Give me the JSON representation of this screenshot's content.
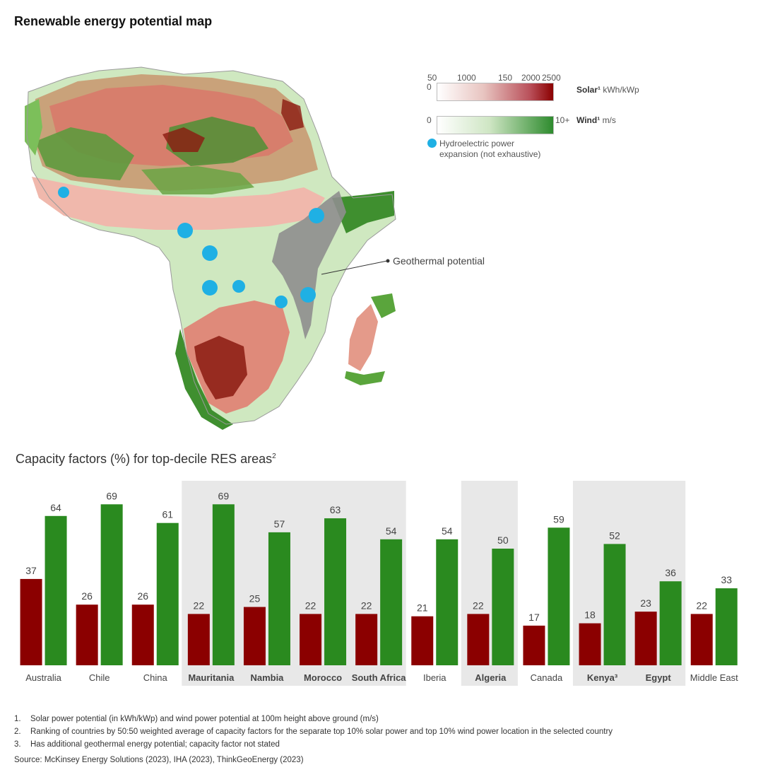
{
  "map": {
    "title": "Renewable energy potential map",
    "legend": {
      "solar": {
        "ticks": [
          "50",
          "1000",
          "150",
          "2000",
          "2500"
        ],
        "zero": "0",
        "label_bold": "Solar¹",
        "label_unit": "kWh/kWp",
        "color_start": "#ffffff",
        "color_end": "#8b0000"
      },
      "wind": {
        "zero": "0",
        "max": "10+",
        "label_bold": "Wind¹",
        "label_unit": "m/s",
        "color_start": "#ffffff",
        "color_end": "#2e8b2e"
      },
      "hydro": {
        "line1": "Hydroelectric power",
        "line2": "expansion (not exhaustive)",
        "color": "#1fb0e4"
      }
    },
    "geothermal_label": "Geothermal potential"
  },
  "chart_data": {
    "type": "bar",
    "title": "Capacity factors (%) for top-decile RES areas",
    "title_sup": "2",
    "categories": [
      "Australia",
      "Chile",
      "China",
      "Mauritania",
      "Nambia",
      "Morocco",
      "South Africa",
      "Iberia",
      "Algeria",
      "Canada",
      "Kenya³",
      "Egypt",
      "Middle East"
    ],
    "highlighted": [
      false,
      false,
      false,
      true,
      true,
      true,
      true,
      false,
      true,
      false,
      true,
      true,
      false
    ],
    "series": [
      {
        "values": [
          37,
          26,
          26,
          22,
          25,
          22,
          22,
          21,
          22,
          17,
          18,
          23,
          22
        ],
        "color": "#8b0000"
      },
      {
        "values": [
          64,
          69,
          61,
          69,
          57,
          63,
          54,
          54,
          50,
          59,
          52,
          36,
          33
        ],
        "color": "#2a8a1f"
      }
    ],
    "ylim": [
      0,
      70
    ],
    "grid": false,
    "legend": "none"
  },
  "footnotes": [
    {
      "num": "1.",
      "text": "Solar power potential (in kWh/kWp) and wind power potential at 100m height above ground (m/s)"
    },
    {
      "num": "2.",
      "text": "Ranking of countries by 50:50 weighted average of capacity factors for the separate top 10% solar power and top 10% wind power location in the selected country"
    },
    {
      "num": "3.",
      "text": "Has additional geothermal energy potential; capacity factor not stated"
    }
  ],
  "source": "Source: McKinsey Energy Solutions (2023), IHA (2023), ThinkGeoEnergy (2023)"
}
